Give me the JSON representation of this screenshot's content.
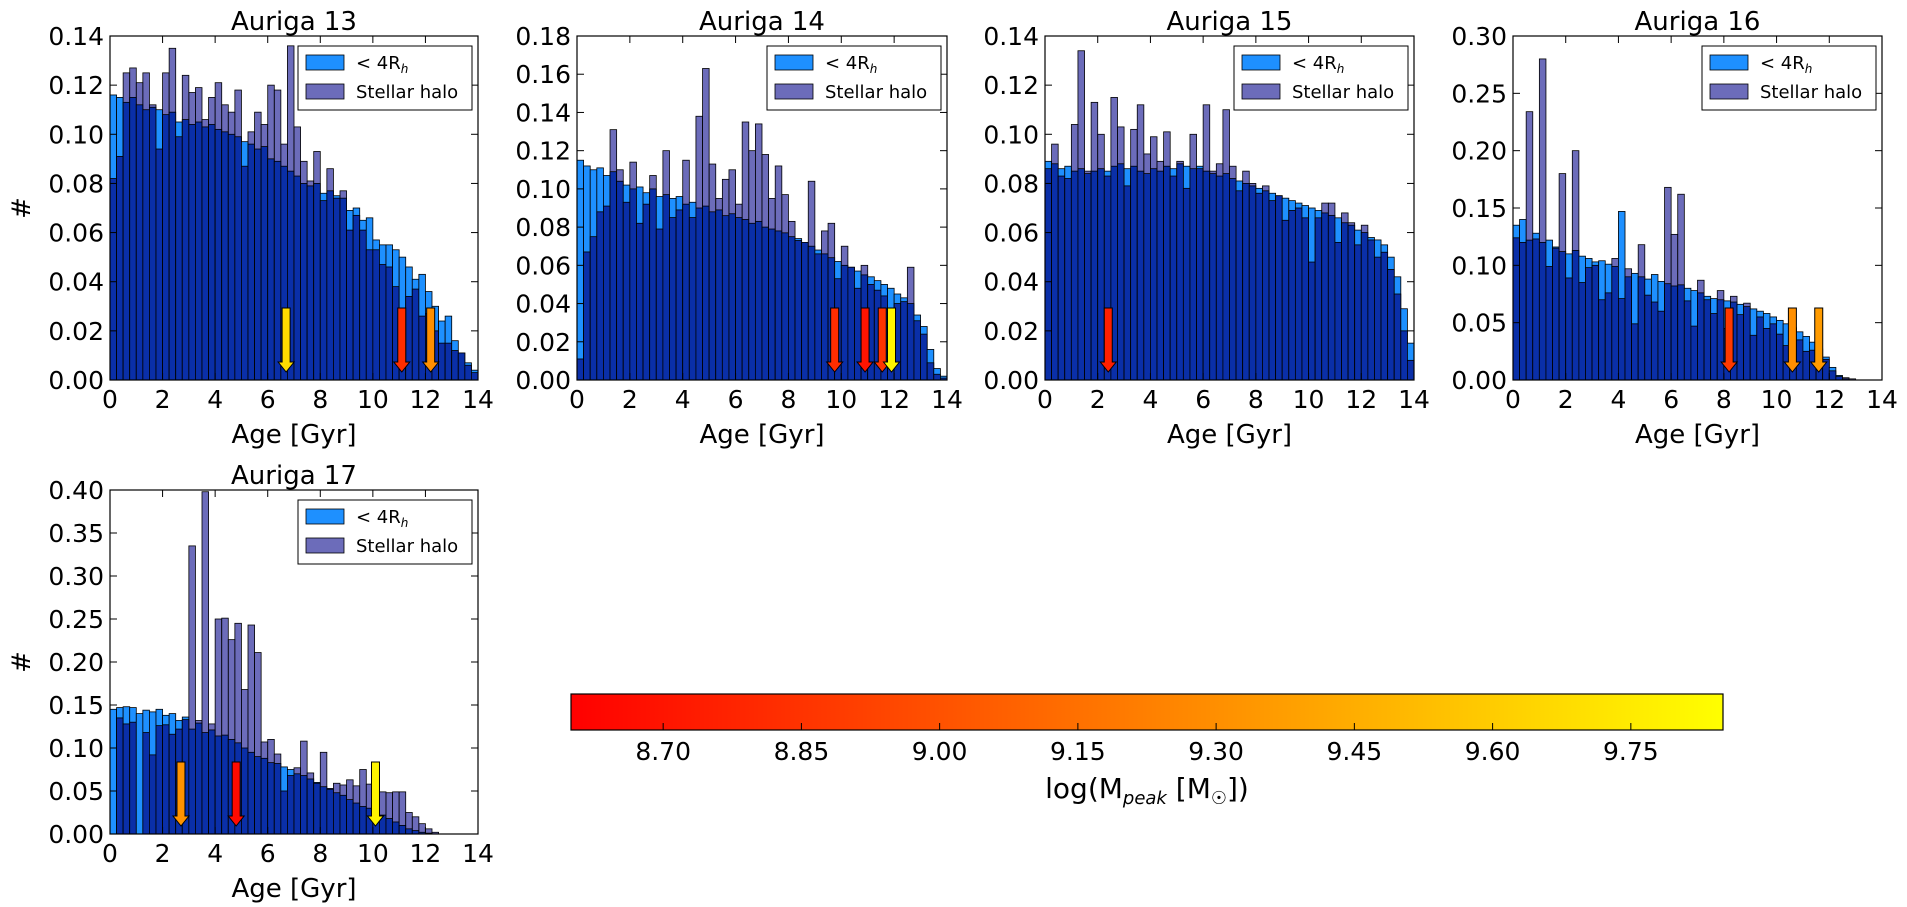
{
  "colors": {
    "disc": "#1e90ff",
    "halo": "#3333a0",
    "overlap": "#0a2fa8",
    "edge": "#000000"
  },
  "colorbar": {
    "label_main": "log(M",
    "label_sub": "peak",
    "label_unit": " [M",
    "label_sun": "☉",
    "label_close": "])",
    "vmin": 8.6,
    "vmax": 9.85,
    "ticks": [
      "8.70",
      "8.85",
      "9.00",
      "9.15",
      "9.30",
      "9.45",
      "9.60",
      "9.75"
    ],
    "tick_values": [
      8.7,
      8.85,
      9.0,
      9.15,
      9.3,
      9.45,
      9.6,
      9.75
    ],
    "stops": [
      "#ff0000",
      "#ffff00"
    ]
  },
  "chart_data": [
    {
      "type": "bar",
      "title": "Auriga 13",
      "xlabel": "Age [Gyr]",
      "ylabel": "#",
      "xlim": [
        0,
        14
      ],
      "ylim": [
        0,
        0.14
      ],
      "yticks": [
        "0.00",
        "0.02",
        "0.04",
        "0.06",
        "0.08",
        "0.10",
        "0.12",
        "0.14"
      ],
      "ytick_values": [
        0,
        0.02,
        0.04,
        0.06,
        0.08,
        0.1,
        0.12,
        0.14
      ],
      "xticks": [
        "0",
        "2",
        "4",
        "6",
        "8",
        "10",
        "12",
        "14"
      ],
      "xtick_values": [
        0,
        2,
        4,
        6,
        8,
        10,
        12,
        14
      ],
      "legend": {
        "disc": "< 4R",
        "disc_sub": "h",
        "halo": "Stellar halo",
        "loc": "upper right"
      },
      "bin_width": 0.25,
      "series": [
        {
          "name": "< 4R_h",
          "values": [
            0.116,
            0.115,
            0.113,
            0.115,
            0.112,
            0.11,
            0.111,
            0.11,
            0.108,
            0.109,
            0.105,
            0.106,
            0.104,
            0.105,
            0.103,
            0.104,
            0.102,
            0.101,
            0.1,
            0.099,
            0.097,
            0.096,
            0.094,
            0.095,
            0.09,
            0.089,
            0.087,
            0.085,
            0.083,
            0.08,
            0.079,
            0.08,
            0.076,
            0.077,
            0.075,
            0.074,
            0.069,
            0.07,
            0.065,
            0.066,
            0.057,
            0.055,
            0.055,
            0.053,
            0.05,
            0.046,
            0.041,
            0.043,
            0.036,
            0.03,
            0.024,
            0.026,
            0.016,
            0.011,
            0.007,
            0.004,
            0.0
          ]
        },
        {
          "name": "Stellar halo",
          "values": [
            0.082,
            0.091,
            0.125,
            0.127,
            0.121,
            0.125,
            0.112,
            0.094,
            0.125,
            0.135,
            0.099,
            0.124,
            0.117,
            0.119,
            0.106,
            0.115,
            0.121,
            0.112,
            0.109,
            0.118,
            0.087,
            0.101,
            0.109,
            0.104,
            0.12,
            0.118,
            0.096,
            0.136,
            0.103,
            0.089,
            0.081,
            0.093,
            0.073,
            0.086,
            0.074,
            0.077,
            0.061,
            0.067,
            0.061,
            0.053,
            0.053,
            0.047,
            0.046,
            0.038,
            0.028,
            0.034,
            0.037,
            0.026,
            0.027,
            0.02,
            0.015,
            0.015,
            0.012,
            0.011,
            0.006,
            0.003,
            0.0
          ]
        }
      ],
      "arrows": [
        {
          "age": 6.7,
          "logm": 9.68
        },
        {
          "age": 11.1,
          "logm": 8.82
        },
        {
          "age": 12.2,
          "logm": 9.3
        }
      ]
    },
    {
      "type": "bar",
      "title": "Auriga 14",
      "xlabel": "Age [Gyr]",
      "ylabel": "",
      "xlim": [
        0,
        14
      ],
      "ylim": [
        0,
        0.18
      ],
      "yticks": [
        "0.00",
        "0.02",
        "0.04",
        "0.06",
        "0.08",
        "0.10",
        "0.12",
        "0.14",
        "0.16",
        "0.18"
      ],
      "ytick_values": [
        0,
        0.02,
        0.04,
        0.06,
        0.08,
        0.1,
        0.12,
        0.14,
        0.16,
        0.18
      ],
      "xticks": [
        "0",
        "2",
        "4",
        "6",
        "8",
        "10",
        "12",
        "14"
      ],
      "xtick_values": [
        0,
        2,
        4,
        6,
        8,
        10,
        12,
        14
      ],
      "legend": {
        "disc": "< 4R",
        "disc_sub": "h",
        "halo": "Stellar halo",
        "loc": "upper right"
      },
      "bin_width": 0.25,
      "series": [
        {
          "name": "< 4R_h",
          "values": [
            0.115,
            0.112,
            0.11,
            0.111,
            0.107,
            0.109,
            0.104,
            0.102,
            0.1,
            0.101,
            0.098,
            0.1,
            0.096,
            0.097,
            0.095,
            0.096,
            0.092,
            0.093,
            0.09,
            0.091,
            0.088,
            0.089,
            0.086,
            0.087,
            0.085,
            0.084,
            0.082,
            0.083,
            0.08,
            0.079,
            0.078,
            0.077,
            0.075,
            0.074,
            0.072,
            0.07,
            0.068,
            0.066,
            0.064,
            0.062,
            0.06,
            0.059,
            0.057,
            0.055,
            0.054,
            0.052,
            0.05,
            0.048,
            0.045,
            0.043,
            0.04,
            0.034,
            0.028,
            0.016,
            0.006,
            0.002,
            0.001
          ]
        },
        {
          "name": "Stellar halo",
          "values": [
            0.011,
            0.067,
            0.075,
            0.088,
            0.091,
            0.131,
            0.11,
            0.093,
            0.114,
            0.082,
            0.092,
            0.107,
            0.079,
            0.12,
            0.085,
            0.089,
            0.115,
            0.085,
            0.138,
            0.163,
            0.113,
            0.095,
            0.105,
            0.11,
            0.092,
            0.135,
            0.12,
            0.134,
            0.118,
            0.095,
            0.112,
            0.097,
            0.083,
            0.073,
            0.072,
            0.104,
            0.066,
            0.078,
            0.082,
            0.053,
            0.07,
            0.059,
            0.048,
            0.06,
            0.05,
            0.047,
            0.044,
            0.025,
            0.04,
            0.041,
            0.059,
            0.031,
            0.024,
            0.009,
            0.003,
            0.001,
            0.0
          ]
        }
      ],
      "arrows": [
        {
          "age": 9.75,
          "logm": 8.82
        },
        {
          "age": 10.9,
          "logm": 8.7
        },
        {
          "age": 11.55,
          "logm": 8.85
        },
        {
          "age": 11.9,
          "logm": 9.8
        }
      ]
    },
    {
      "type": "bar",
      "title": "Auriga 15",
      "xlabel": "Age [Gyr]",
      "ylabel": "",
      "xlim": [
        0,
        14
      ],
      "ylim": [
        0,
        0.14
      ],
      "yticks": [
        "0.00",
        "0.02",
        "0.04",
        "0.06",
        "0.08",
        "0.10",
        "0.12",
        "0.14"
      ],
      "ytick_values": [
        0,
        0.02,
        0.04,
        0.06,
        0.08,
        0.1,
        0.12,
        0.14
      ],
      "xticks": [
        "0",
        "2",
        "4",
        "6",
        "8",
        "10",
        "12",
        "14"
      ],
      "xtick_values": [
        0,
        2,
        4,
        6,
        8,
        10,
        12,
        14
      ],
      "legend": {
        "disc": "< 4R",
        "disc_sub": "h",
        "halo": "Stellar halo",
        "loc": "upper right"
      },
      "bin_width": 0.25,
      "series": [
        {
          "name": "< 4R_h",
          "values": [
            0.089,
            0.088,
            0.086,
            0.087,
            0.085,
            0.086,
            0.084,
            0.085,
            0.086,
            0.085,
            0.087,
            0.088,
            0.086,
            0.087,
            0.085,
            0.084,
            0.086,
            0.085,
            0.087,
            0.086,
            0.088,
            0.087,
            0.086,
            0.087,
            0.085,
            0.084,
            0.083,
            0.084,
            0.082,
            0.081,
            0.08,
            0.079,
            0.078,
            0.077,
            0.076,
            0.075,
            0.074,
            0.073,
            0.072,
            0.071,
            0.07,
            0.069,
            0.068,
            0.067,
            0.066,
            0.064,
            0.063,
            0.061,
            0.06,
            0.058,
            0.057,
            0.055,
            0.05,
            0.042,
            0.029,
            0.015,
            0.006
          ]
        },
        {
          "name": "Stellar halo",
          "values": [
            0.086,
            0.096,
            0.083,
            0.082,
            0.104,
            0.134,
            0.085,
            0.113,
            0.1,
            0.083,
            0.115,
            0.103,
            0.079,
            0.102,
            0.112,
            0.092,
            0.099,
            0.089,
            0.101,
            0.083,
            0.089,
            0.078,
            0.1,
            0.086,
            0.112,
            0.085,
            0.088,
            0.11,
            0.087,
            0.077,
            0.085,
            0.08,
            0.076,
            0.079,
            0.073,
            0.075,
            0.065,
            0.069,
            0.07,
            0.066,
            0.048,
            0.066,
            0.072,
            0.072,
            0.056,
            0.068,
            0.064,
            0.055,
            0.063,
            0.057,
            0.05,
            0.052,
            0.045,
            0.035,
            0.02,
            0.008,
            0.001
          ]
        }
      ],
      "arrows": [
        {
          "age": 2.4,
          "logm": 8.75
        }
      ]
    },
    {
      "type": "bar",
      "title": "Auriga 16",
      "xlabel": "Age [Gyr]",
      "ylabel": "",
      "xlim": [
        0,
        14
      ],
      "ylim": [
        0,
        0.3
      ],
      "yticks": [
        "0.00",
        "0.05",
        "0.10",
        "0.15",
        "0.20",
        "0.25",
        "0.30"
      ],
      "ytick_values": [
        0,
        0.05,
        0.1,
        0.15,
        0.2,
        0.25,
        0.3
      ],
      "xticks": [
        "0",
        "2",
        "4",
        "6",
        "8",
        "10",
        "12",
        "14"
      ],
      "xtick_values": [
        0,
        2,
        4,
        6,
        8,
        10,
        12,
        14
      ],
      "legend": {
        "disc": "< 4R",
        "disc_sub": "h",
        "halo": "Stellar halo",
        "loc": "upper right"
      },
      "bin_width": 0.25,
      "series": [
        {
          "name": "< 4R_h",
          "values": [
            0.135,
            0.14,
            0.122,
            0.128,
            0.12,
            0.122,
            0.116,
            0.112,
            0.11,
            0.113,
            0.108,
            0.106,
            0.103,
            0.104,
            0.101,
            0.099,
            0.147,
            0.09,
            0.093,
            0.09,
            0.088,
            0.092,
            0.086,
            0.084,
            0.082,
            0.083,
            0.08,
            0.078,
            0.076,
            0.073,
            0.071,
            0.07,
            0.069,
            0.068,
            0.066,
            0.064,
            0.062,
            0.06,
            0.058,
            0.055,
            0.052,
            0.049,
            0.046,
            0.042,
            0.038,
            0.033,
            0.027,
            0.02,
            0.011,
            0.004,
            0.001,
            0.0
          ]
        },
        {
          "name": "Stellar halo",
          "values": [
            0.124,
            0.12,
            0.234,
            0.123,
            0.28,
            0.099,
            0.115,
            0.18,
            0.089,
            0.2,
            0.085,
            0.098,
            0.1,
            0.07,
            0.076,
            0.106,
            0.071,
            0.097,
            0.049,
            0.118,
            0.074,
            0.068,
            0.06,
            0.168,
            0.127,
            0.162,
            0.069,
            0.047,
            0.087,
            0.07,
            0.058,
            0.078,
            0.045,
            0.073,
            0.057,
            0.067,
            0.039,
            0.055,
            0.045,
            0.049,
            0.04,
            0.03,
            0.045,
            0.035,
            0.025,
            0.026,
            0.02,
            0.018,
            0.008,
            0.003,
            0.002,
            0.001
          ]
        }
      ],
      "arrows": [
        {
          "age": 8.2,
          "logm": 8.88
        },
        {
          "age": 10.6,
          "logm": 9.3
        },
        {
          "age": 11.6,
          "logm": 9.36
        }
      ]
    },
    {
      "type": "bar",
      "title": "Auriga 17",
      "xlabel": "Age [Gyr]",
      "ylabel": "#",
      "xlim": [
        0,
        14
      ],
      "ylim": [
        0,
        0.4
      ],
      "yticks": [
        "0.00",
        "0.05",
        "0.10",
        "0.15",
        "0.20",
        "0.25",
        "0.30",
        "0.35",
        "0.40"
      ],
      "ytick_values": [
        0,
        0.05,
        0.1,
        0.15,
        0.2,
        0.25,
        0.3,
        0.35,
        0.4
      ],
      "xticks": [
        "0",
        "2",
        "4",
        "6",
        "8",
        "10",
        "12",
        "14"
      ],
      "xtick_values": [
        0,
        2,
        4,
        6,
        8,
        10,
        12,
        14
      ],
      "legend": {
        "disc": "< 4R",
        "disc_sub": "h",
        "halo": "Stellar halo",
        "loc": "upper right"
      },
      "bin_width": 0.25,
      "series": [
        {
          "name": "< 4R_h",
          "values": [
            0.145,
            0.147,
            0.148,
            0.147,
            0.14,
            0.144,
            0.142,
            0.145,
            0.138,
            0.14,
            0.132,
            0.136,
            0.122,
            0.129,
            0.118,
            0.121,
            0.114,
            0.115,
            0.11,
            0.106,
            0.1,
            0.095,
            0.09,
            0.088,
            0.083,
            0.082,
            0.078,
            0.075,
            0.07,
            0.068,
            0.064,
            0.06,
            0.055,
            0.052,
            0.048,
            0.045,
            0.04,
            0.036,
            0.032,
            0.03,
            0.026,
            0.022,
            0.018,
            0.014,
            0.01,
            0.006,
            0.004,
            0.002,
            0.001,
            0.0
          ]
        },
        {
          "name": "Stellar halo",
          "values": [
            0.0,
            0.135,
            0.128,
            0.13,
            0.0,
            0.118,
            0.092,
            0.126,
            0.127,
            0.116,
            0.122,
            0.133,
            0.335,
            0.132,
            0.398,
            0.128,
            0.25,
            0.251,
            0.226,
            0.245,
            0.168,
            0.243,
            0.211,
            0.107,
            0.11,
            0.093,
            0.05,
            0.068,
            0.077,
            0.108,
            0.071,
            0.059,
            0.095,
            0.053,
            0.059,
            0.057,
            0.063,
            0.056,
            0.075,
            0.058,
            0.067,
            0.049,
            0.048,
            0.049,
            0.049,
            0.025,
            0.02,
            0.012,
            0.006,
            0.002
          ]
        }
      ],
      "arrows": [
        {
          "age": 2.7,
          "logm": 9.32
        },
        {
          "age": 4.8,
          "logm": 8.65
        },
        {
          "age": 10.1,
          "logm": 9.8
        }
      ]
    }
  ]
}
